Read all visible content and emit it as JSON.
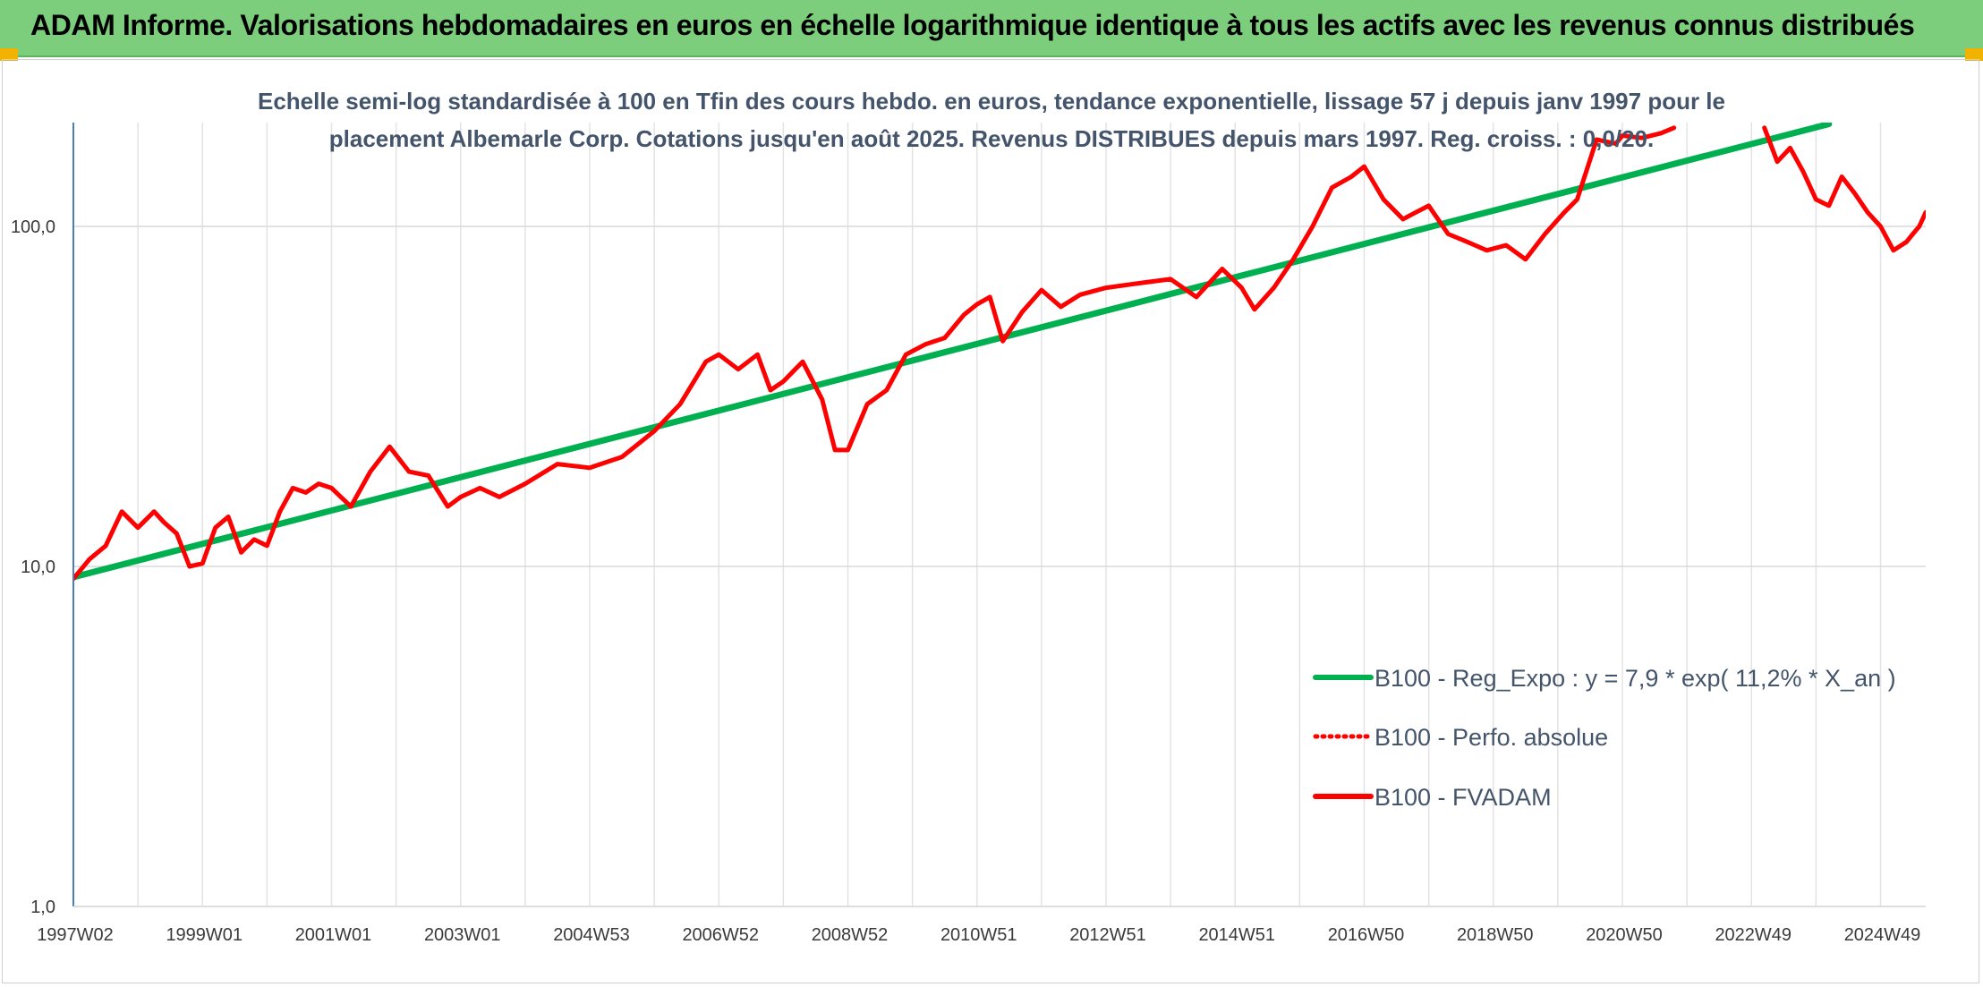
{
  "banner": {
    "title": "ADAM Informe. Valorisations hebdomadaires en euros en échelle logarithmique identique à tous les actifs avec les revenus connus distribués"
  },
  "chart_data": {
    "type": "line",
    "title_lines": [
      "Echelle semi-log standardisée à 100 en Tfin des cours hebdo. en euros, tendance exponentielle, lissage 57 j depuis janv 1997 pour le",
      "placement Albemarle Corp. Cotations jusqu'en août 2025. Revenus DISTRIBUES depuis mars 1997. Reg. croiss. : 0,0/20."
    ],
    "y_scale": "log",
    "ylim": [
      1,
      200
    ],
    "y_ticks": [
      {
        "value": 1,
        "label": "1,0"
      },
      {
        "value": 10,
        "label": "10,0"
      },
      {
        "value": 100,
        "label": "100,0"
      }
    ],
    "xlim": [
      1997.0,
      2025.7
    ],
    "x_ticks": [
      {
        "x": 1997.0,
        "label": "1997W02"
      },
      {
        "x": 1999.0,
        "label": "1999W01"
      },
      {
        "x": 2001.0,
        "label": "2001W01"
      },
      {
        "x": 2003.0,
        "label": "2003W01"
      },
      {
        "x": 2005.0,
        "label": "2004W53"
      },
      {
        "x": 2007.0,
        "label": "2006W52"
      },
      {
        "x": 2009.0,
        "label": "2008W52"
      },
      {
        "x": 2011.0,
        "label": "2010W51"
      },
      {
        "x": 2013.0,
        "label": "2012W51"
      },
      {
        "x": 2015.0,
        "label": "2014W51"
      },
      {
        "x": 2017.0,
        "label": "2016W50"
      },
      {
        "x": 2019.0,
        "label": "2018W50"
      },
      {
        "x": 2021.0,
        "label": "2020W50"
      },
      {
        "x": 2023.0,
        "label": "2022W49"
      },
      {
        "x": 2025.0,
        "label": "2024W49"
      }
    ],
    "grid": true,
    "legend_position": "lower-right",
    "series": [
      {
        "name": "B100 - Reg_Expo : y = 7,9 * exp( 11,2% *  X_an )",
        "color": "#00b050",
        "style": "solid",
        "x": [
          1997.0,
          2024.2
        ],
        "y": [
          9.3,
          200
        ]
      },
      {
        "name": "B100 - Perfo. absolue",
        "color": "#ff0000",
        "style": "dotted",
        "x": [],
        "y": []
      },
      {
        "name": "B100 - FVADAM",
        "color": "#ff0000",
        "style": "solid",
        "segments": [
          {
            "x": [
              1997.0,
              1997.25,
              1997.5,
              1997.75,
              1998.0,
              1998.25,
              1998.4,
              1998.6,
              1998.8,
              1999.0,
              1999.2,
              1999.4,
              1999.6,
              1999.8,
              2000.0,
              2000.2,
              2000.4,
              2000.6,
              2000.8,
              2001.0,
              2001.3,
              2001.6,
              2001.9,
              2002.2,
              2002.5,
              2002.8,
              2003.0,
              2003.3,
              2003.6,
              2004.0,
              2004.5,
              2005.0,
              2005.5,
              2006.0,
              2006.4,
              2006.8,
              2007.0,
              2007.3,
              2007.6,
              2007.8,
              2008.0,
              2008.3,
              2008.6,
              2008.8,
              2009.0,
              2009.3,
              2009.6,
              2009.9,
              2010.2,
              2010.5,
              2010.8,
              2011.0,
              2011.2,
              2011.4,
              2011.7,
              2012.0,
              2012.3,
              2012.6,
              2013.0,
              2013.5,
              2014.0,
              2014.4,
              2014.8,
              2015.1,
              2015.3,
              2015.6,
              2015.9,
              2016.2,
              2016.5,
              2016.8,
              2017.0,
              2017.3,
              2017.6,
              2017.8,
              2018.0,
              2018.3,
              2018.6,
              2018.9,
              2019.2,
              2019.5,
              2019.8,
              2020.1,
              2020.3,
              2020.6,
              2020.9,
              2021.0,
              2021.3,
              2021.6,
              2021.8
            ],
            "y": [
              9.2,
              10.5,
              11.5,
              14.5,
              13.0,
              14.5,
              13.5,
              12.5,
              10.0,
              10.2,
              13.0,
              14.0,
              11.0,
              12.0,
              11.5,
              14.5,
              17.0,
              16.5,
              17.5,
              17.0,
              15.0,
              19.0,
              22.5,
              19.0,
              18.5,
              15.0,
              16.0,
              17.0,
              16.0,
              17.5,
              20.0,
              19.5,
              21.0,
              25.0,
              30.0,
              40.0,
              42.0,
              38.0,
              42.0,
              33.0,
              35.0,
              40.0,
              31.0,
              22.0,
              22.0,
              30.0,
              33.0,
              42.0,
              45.0,
              47.0,
              55.0,
              59.0,
              62.0,
              46.0,
              56.0,
              65.0,
              58.0,
              63.0,
              66.0,
              68.0,
              70.0,
              62.0,
              75.0,
              66.0,
              57.0,
              66.0,
              80.0,
              100.0,
              130.0,
              140.0,
              150.0,
              120.0,
              105.0,
              110.0,
              115.0,
              95.0,
              90.0,
              85.0,
              88.0,
              80.0,
              95.0,
              110.0,
              120.0,
              180.0,
              175.0,
              185.0,
              182.0,
              188.0,
              195.0
            ]
          },
          {
            "x": [
              2023.2,
              2023.4,
              2023.6,
              2023.8,
              2024.0,
              2024.2,
              2024.4,
              2024.6,
              2024.8,
              2025.0,
              2025.2,
              2025.4,
              2025.5,
              2025.6,
              2025.7
            ],
            "y": [
              195.0,
              155.0,
              170.0,
              145.0,
              120.0,
              115.0,
              140.0,
              125.0,
              110.0,
              100.0,
              85.0,
              90.0,
              95.0,
              100.0,
              110.0
            ]
          }
        ]
      }
    ]
  }
}
